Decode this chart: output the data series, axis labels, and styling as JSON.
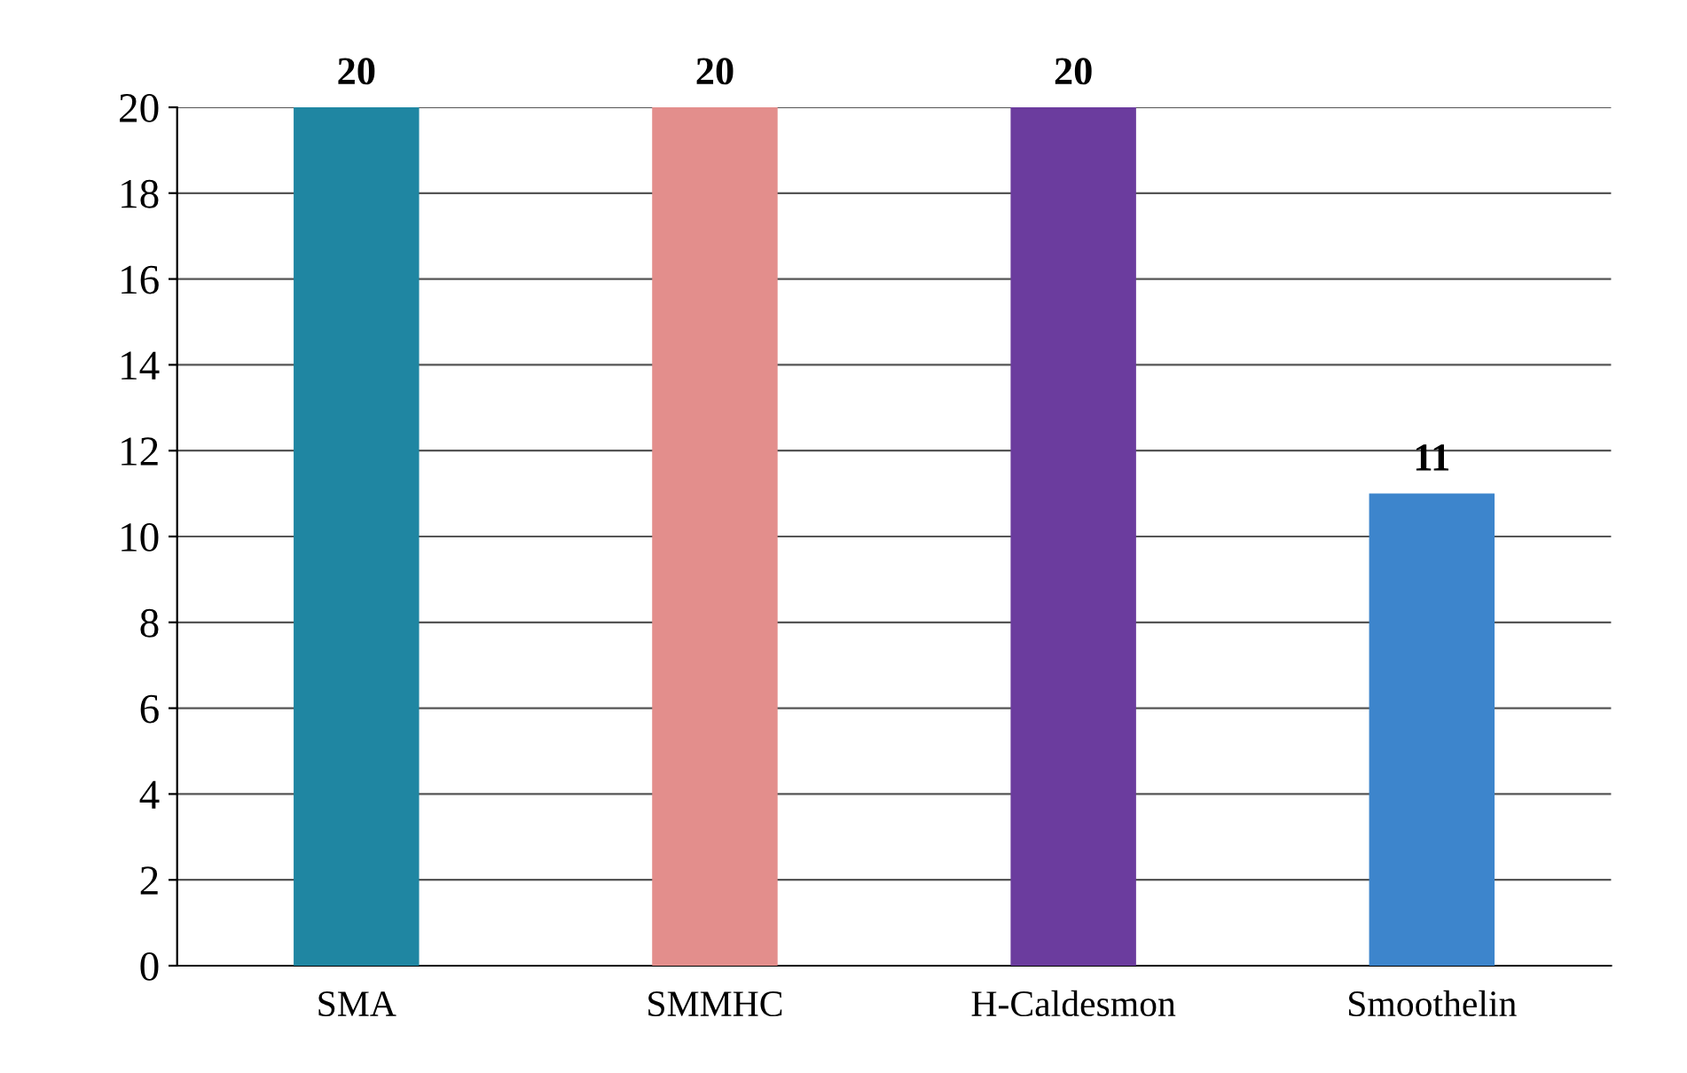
{
  "chart_data": {
    "type": "bar",
    "categories": [
      "SMA",
      "SMMHC",
      "H-Caldesmon",
      "Smoothelin"
    ],
    "values": [
      20,
      20,
      20,
      11
    ],
    "colors": [
      "#1f86a2",
      "#e38e8c",
      "#6b3c9e",
      "#3d85cc"
    ],
    "ylim": [
      0,
      20
    ],
    "yticks": [
      0,
      2,
      4,
      6,
      8,
      10,
      12,
      14,
      16,
      18,
      20
    ],
    "grid": "y",
    "data_labels": true
  }
}
